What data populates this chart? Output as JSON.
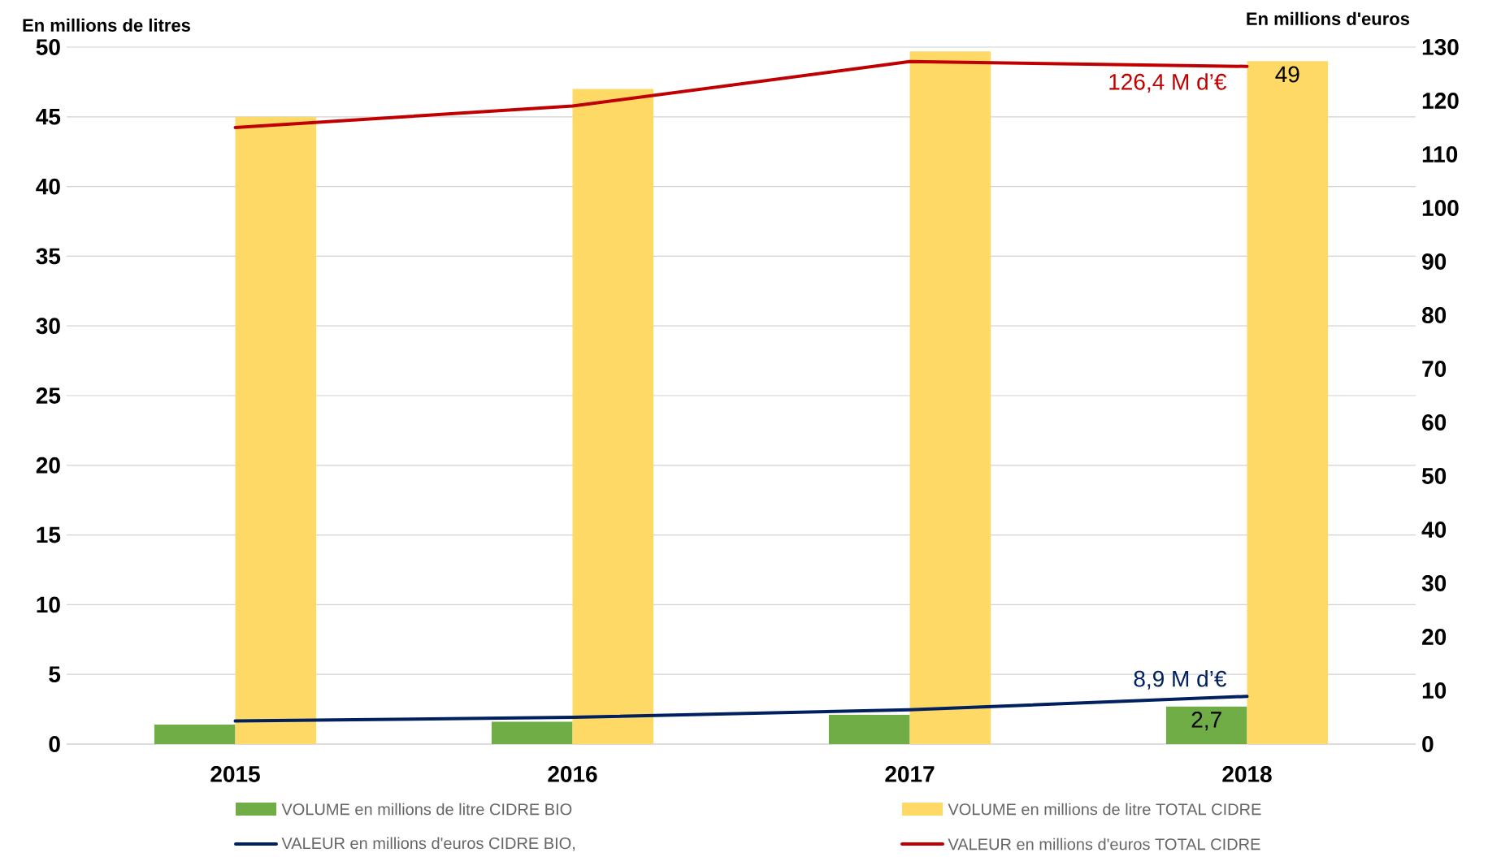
{
  "chart_data": {
    "type": "bar",
    "ylabel": "En millions de litres",
    "y2label": "En millions d'euros",
    "categories": [
      "2015",
      "2016",
      "2017",
      "2018"
    ],
    "series": [
      {
        "name": "VOLUME en millions de litre CIDRE BIO",
        "color": "#70ad47",
        "values": [
          1.4,
          1.6,
          2.1,
          2.7
        ],
        "value_labels": [
          null,
          null,
          null,
          "2,7"
        ]
      },
      {
        "name": "VOLUME en millions de litre TOTAL CIDRE",
        "color": "#ffd966",
        "values": [
          45,
          47,
          49.7,
          49
        ],
        "value_labels": [
          null,
          null,
          null,
          "49"
        ]
      },
      {
        "name": "VALEUR en millions d'euros CIDRE BIO,",
        "type": "line",
        "axis": "y2",
        "color": "#002060",
        "values": [
          4.3,
          5.0,
          6.4,
          8.9
        ],
        "value_labels": [
          null,
          null,
          null,
          "8,9 M d’€"
        ]
      },
      {
        "name": "VALEUR en millions d'euros TOTAL CIDRE",
        "type": "line",
        "axis": "y2",
        "color": "#c00000",
        "values": [
          115,
          119,
          127.3,
          126.4
        ],
        "value_labels": [
          null,
          null,
          null,
          "126,4 M d’€"
        ]
      }
    ],
    "ylim": [
      0,
      50
    ],
    "yticks": [
      0,
      5,
      10,
      15,
      20,
      25,
      30,
      35,
      40,
      45,
      50
    ],
    "y2lim": [
      0,
      130
    ],
    "y2ticks": [
      0,
      10,
      20,
      30,
      40,
      50,
      60,
      70,
      80,
      90,
      100,
      110,
      120,
      130
    ],
    "grid": "y",
    "legend": "bottom"
  }
}
